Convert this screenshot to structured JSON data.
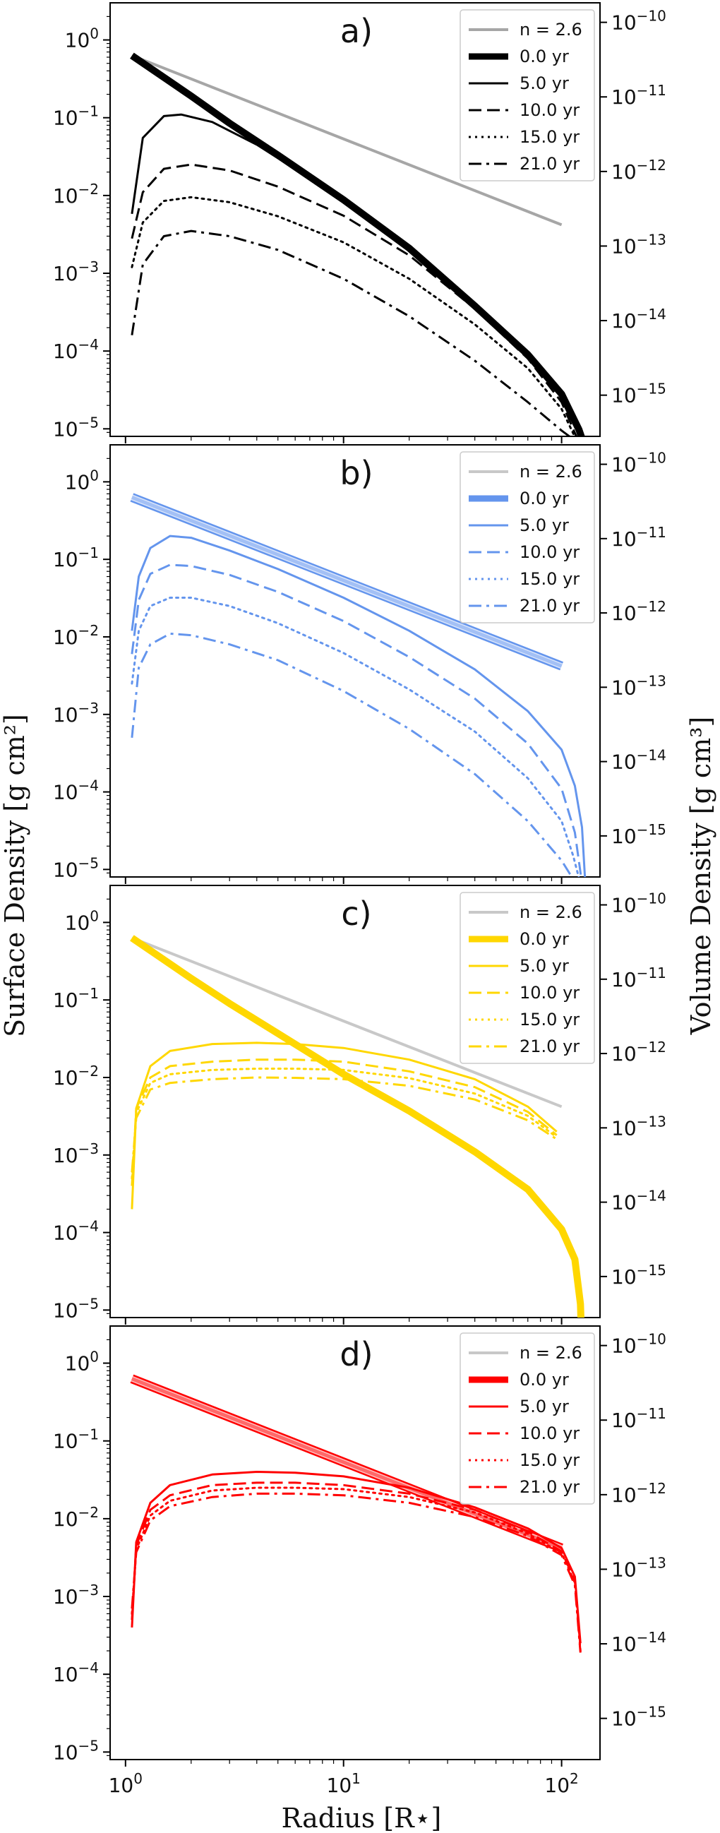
{
  "figure": {
    "xlabel": "Radius [R⋆]",
    "ylabel_left": "Surface Density [g cm²]",
    "ylabel_right": "Volume Density [g cm³]"
  },
  "chart_data": [
    {
      "type": "line",
      "panel": "a)",
      "color": "#000000",
      "powerlaw_color": "#a6a6a6",
      "xscale": "log",
      "yscale": "log",
      "xlim": [
        0.85,
        150
      ],
      "ylim": [
        8e-06,
        3.0
      ],
      "xticks": [
        "10^0",
        "10^1",
        "10^2"
      ],
      "yticks_left": [
        "10^0",
        "10^-1",
        "10^-2",
        "10^-3",
        "10^-4",
        "10^-5"
      ],
      "yticks_right": [
        "10^-10",
        "10^-11",
        "10^-12",
        "10^-13",
        "10^-14",
        "10^-15"
      ],
      "legend_position": "top-right",
      "series": [
        {
          "name": "n = 2.6",
          "style": "solid",
          "kind": "powerlaw",
          "x": [
            1.07,
            100
          ],
          "y": [
            0.63,
            0.0042
          ]
        },
        {
          "name": "0.0 yr",
          "style": "thick",
          "x": [
            1.07,
            1.5,
            2,
            3,
            5,
            10,
            20,
            40,
            70,
            100,
            120,
            124
          ],
          "y": [
            0.63,
            0.33,
            0.19,
            0.085,
            0.033,
            0.0088,
            0.0021,
            0.00038,
            9e-05,
            2.8e-05,
            9.8e-06,
            7.5e-06
          ]
        },
        {
          "name": "5.0 yr",
          "style": "solid",
          "x": [
            1.07,
            1.2,
            1.5,
            1.8,
            2.5,
            4,
            10,
            20,
            40,
            70,
            100,
            124
          ],
          "y": [
            0.0058,
            0.055,
            0.105,
            0.11,
            0.088,
            0.045,
            0.0088,
            0.0021,
            0.00038,
            9e-05,
            2.8e-05,
            7.5e-06
          ]
        },
        {
          "name": "10.0 yr",
          "style": "dashed",
          "x": [
            1.07,
            1.2,
            1.5,
            2,
            3,
            5,
            10,
            20,
            40,
            70,
            100,
            118
          ],
          "y": [
            0.0028,
            0.011,
            0.022,
            0.025,
            0.021,
            0.013,
            0.0055,
            0.0017,
            0.00035,
            8e-05,
            2.2e-05,
            7.5e-06
          ]
        },
        {
          "name": "15.0 yr",
          "style": "dotted",
          "x": [
            1.07,
            1.2,
            1.5,
            2,
            3,
            5,
            10,
            20,
            40,
            70,
            100,
            116
          ],
          "y": [
            0.0012,
            0.0045,
            0.0085,
            0.0095,
            0.0082,
            0.0054,
            0.0025,
            0.00085,
            0.00022,
            6e-05,
            1.8e-05,
            7.5e-06
          ]
        },
        {
          "name": "21.0 yr",
          "style": "dashdot",
          "x": [
            1.07,
            1.2,
            1.5,
            2,
            3,
            5,
            10,
            20,
            40,
            70,
            100,
            112
          ],
          "y": [
            0.00016,
            0.0013,
            0.003,
            0.0035,
            0.003,
            0.002,
            0.00085,
            0.00028,
            7.5e-05,
            2.2e-05,
            9.5e-06,
            7.5e-06
          ]
        }
      ]
    },
    {
      "type": "line",
      "panel": "b)",
      "color": "#6495ed",
      "powerlaw_color": "#6495ed",
      "xscale": "log",
      "yscale": "log",
      "xlim": [
        0.85,
        150
      ],
      "ylim": [
        8e-06,
        3.0
      ],
      "xticks": [
        "10^0",
        "10^1",
        "10^2"
      ],
      "yticks_left": [
        "10^0",
        "10^-1",
        "10^-2",
        "10^-3",
        "10^-4",
        "10^-5"
      ],
      "yticks_right": [
        "10^-10",
        "10^-11",
        "10^-12",
        "10^-13",
        "10^-14",
        "10^-15"
      ],
      "legend_position": "top-right",
      "series": [
        {
          "name": "n = 2.6",
          "style": "thick-outline",
          "kind": "powerlaw",
          "x": [
            1.07,
            100
          ],
          "y": [
            0.63,
            0.0042
          ]
        },
        {
          "name": "0.0 yr",
          "style": "thick",
          "x": [
            1.07,
            100
          ],
          "y": [
            0.63,
            0.0042
          ]
        },
        {
          "name": "5.0 yr",
          "style": "solid",
          "x": [
            1.07,
            1.15,
            1.3,
            1.6,
            2,
            3,
            5,
            10,
            20,
            40,
            70,
            100,
            115,
            124,
            128
          ],
          "y": [
            0.012,
            0.06,
            0.14,
            0.2,
            0.19,
            0.13,
            0.075,
            0.032,
            0.012,
            0.0038,
            0.0011,
            0.00035,
            0.00012,
            3.5e-05,
            7.8e-06
          ]
        },
        {
          "name": "10.0 yr",
          "style": "dashed",
          "x": [
            1.07,
            1.15,
            1.3,
            1.6,
            2,
            3,
            5,
            10,
            20,
            40,
            70,
            100,
            115,
            123
          ],
          "y": [
            0.006,
            0.03,
            0.065,
            0.085,
            0.082,
            0.063,
            0.038,
            0.016,
            0.0055,
            0.0016,
            0.00042,
            0.00011,
            3e-05,
            7.8e-06
          ]
        },
        {
          "name": "15.0 yr",
          "style": "dotted",
          "x": [
            1.07,
            1.15,
            1.3,
            1.6,
            2,
            3,
            5,
            10,
            20,
            40,
            70,
            100,
            113,
            120
          ],
          "y": [
            0.0025,
            0.012,
            0.025,
            0.032,
            0.032,
            0.025,
            0.015,
            0.0062,
            0.0021,
            0.0006,
            0.00015,
            4.2e-05,
            1.5e-05,
            7.8e-06
          ]
        },
        {
          "name": "21.0 yr",
          "style": "dashdot",
          "x": [
            1.07,
            1.15,
            1.3,
            1.6,
            2,
            3,
            5,
            10,
            20,
            40,
            70,
            100,
            112
          ],
          "y": [
            0.0005,
            0.004,
            0.008,
            0.011,
            0.0105,
            0.008,
            0.005,
            0.002,
            0.00065,
            0.00017,
            4.2e-05,
            1.3e-05,
            7.8e-06
          ]
        }
      ]
    },
    {
      "type": "line",
      "panel": "c)",
      "color": "#ffd700",
      "powerlaw_color": "#c8c8c8",
      "xscale": "log",
      "yscale": "log",
      "xlim": [
        0.85,
        150
      ],
      "ylim": [
        8e-06,
        3.0
      ],
      "xticks": [
        "10^0",
        "10^1",
        "10^2"
      ],
      "yticks_left": [
        "10^0",
        "10^-1",
        "10^-2",
        "10^-3",
        "10^-4",
        "10^-5"
      ],
      "yticks_right": [
        "10^-10",
        "10^-11",
        "10^-12",
        "10^-13",
        "10^-14",
        "10^-15"
      ],
      "legend_position": "top-right",
      "series": [
        {
          "name": "n = 2.6",
          "style": "solid",
          "kind": "powerlaw",
          "x": [
            1.07,
            100
          ],
          "y": [
            0.63,
            0.0042
          ]
        },
        {
          "name": "0.0 yr",
          "style": "thick",
          "x": [
            1.07,
            1.5,
            2,
            3,
            5,
            10,
            20,
            40,
            70,
            100,
            115,
            122,
            124
          ],
          "y": [
            0.63,
            0.33,
            0.19,
            0.09,
            0.037,
            0.011,
            0.0037,
            0.0011,
            0.00036,
            0.00011,
            4.5e-05,
            1.2e-05,
            3e-06
          ]
        },
        {
          "name": "5.0 yr",
          "style": "solid",
          "x": [
            1.07,
            1.12,
            1.3,
            1.6,
            2.5,
            4,
            6,
            10,
            20,
            40,
            70,
            95
          ],
          "y": [
            0.0002,
            0.004,
            0.014,
            0.022,
            0.027,
            0.028,
            0.027,
            0.024,
            0.017,
            0.0095,
            0.0042,
            0.002
          ]
        },
        {
          "name": "10.0 yr",
          "style": "dashed",
          "x": [
            1.07,
            1.12,
            1.3,
            1.6,
            2.5,
            4,
            6,
            10,
            20,
            40,
            70,
            95
          ],
          "y": [
            0.0004,
            0.004,
            0.01,
            0.014,
            0.016,
            0.017,
            0.017,
            0.016,
            0.012,
            0.0075,
            0.0036,
            0.0018
          ]
        },
        {
          "name": "15.0 yr",
          "style": "dotted",
          "x": [
            1.07,
            1.12,
            1.3,
            1.6,
            2.5,
            4,
            6,
            10,
            20,
            40,
            70,
            95
          ],
          "y": [
            0.0005,
            0.0035,
            0.0085,
            0.011,
            0.0125,
            0.013,
            0.013,
            0.0125,
            0.0098,
            0.0062,
            0.0032,
            0.0017
          ]
        },
        {
          "name": "21.0 yr",
          "style": "dashdot",
          "x": [
            1.07,
            1.12,
            1.3,
            1.6,
            2.5,
            4,
            6,
            10,
            20,
            40,
            70,
            95
          ],
          "y": [
            0.0006,
            0.003,
            0.007,
            0.0085,
            0.0095,
            0.01,
            0.0099,
            0.0095,
            0.0078,
            0.0052,
            0.0028,
            0.0016
          ]
        }
      ]
    },
    {
      "type": "line",
      "panel": "d)",
      "color": "#ff0000",
      "powerlaw_color": "#ff0000",
      "xscale": "log",
      "yscale": "log",
      "xlim": [
        0.85,
        150
      ],
      "ylim": [
        8e-06,
        3.0
      ],
      "xticks": [
        "10^0",
        "10^1",
        "10^2"
      ],
      "yticks_left": [
        "10^0",
        "10^-1",
        "10^-2",
        "10^-3",
        "10^-4",
        "10^-5"
      ],
      "yticks_right": [
        "10^-10",
        "10^-11",
        "10^-12",
        "10^-13",
        "10^-14",
        "10^-15"
      ],
      "legend_position": "top-right",
      "series": [
        {
          "name": "n = 2.6",
          "style": "thick-outline",
          "kind": "powerlaw",
          "x": [
            1.07,
            100
          ],
          "y": [
            0.63,
            0.0042
          ]
        },
        {
          "name": "0.0 yr",
          "style": "thick",
          "x": [
            1.07,
            100
          ],
          "y": [
            0.63,
            0.0042
          ]
        },
        {
          "name": "5.0 yr",
          "style": "solid",
          "x": [
            1.07,
            1.12,
            1.3,
            1.6,
            2.5,
            4,
            6,
            10,
            20,
            40,
            70,
            100,
            115,
            122
          ],
          "y": [
            0.0004,
            0.005,
            0.016,
            0.027,
            0.037,
            0.04,
            0.039,
            0.035,
            0.025,
            0.014,
            0.0075,
            0.0042,
            0.0018,
            0.00025
          ]
        },
        {
          "name": "10.0 yr",
          "style": "dashed",
          "x": [
            1.07,
            1.12,
            1.3,
            1.6,
            2.5,
            4,
            6,
            10,
            20,
            40,
            70,
            100,
            115,
            122
          ],
          "y": [
            0.0005,
            0.0045,
            0.013,
            0.02,
            0.027,
            0.029,
            0.029,
            0.027,
            0.021,
            0.013,
            0.0068,
            0.0038,
            0.0016,
            0.00022
          ]
        },
        {
          "name": "15.0 yr",
          "style": "dotted",
          "x": [
            1.07,
            1.12,
            1.3,
            1.6,
            2.5,
            4,
            6,
            10,
            20,
            40,
            70,
            100,
            115,
            122
          ],
          "y": [
            0.0006,
            0.004,
            0.011,
            0.017,
            0.023,
            0.025,
            0.025,
            0.024,
            0.019,
            0.012,
            0.0064,
            0.0036,
            0.0015,
            0.0002
          ]
        },
        {
          "name": "21.0 yr",
          "style": "dashdot",
          "x": [
            1.07,
            1.12,
            1.3,
            1.6,
            2.5,
            4,
            6,
            10,
            20,
            40,
            70,
            100,
            115,
            122
          ],
          "y": [
            0.0007,
            0.0037,
            0.0095,
            0.0145,
            0.019,
            0.021,
            0.021,
            0.02,
            0.016,
            0.0105,
            0.006,
            0.0034,
            0.0014,
            0.00019
          ]
        }
      ]
    }
  ]
}
